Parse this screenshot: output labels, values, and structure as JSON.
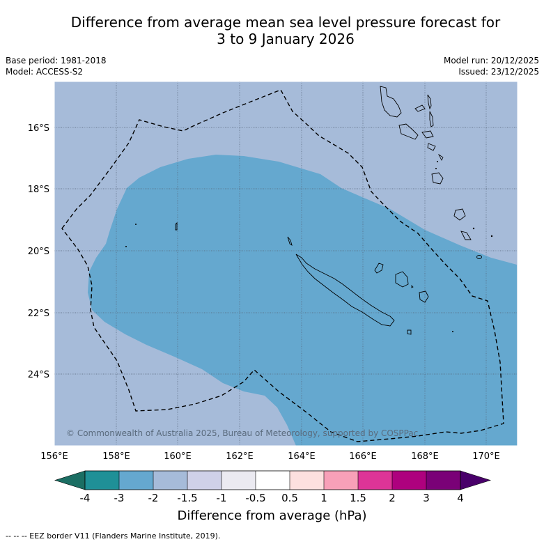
{
  "header": {
    "title_line1": "Difference from average mean sea level pressure forecast for",
    "title_line2": "3 to 9 January 2026"
  },
  "meta": {
    "base_period": "Base period: 1981-2018",
    "model": "Model: ACCESS-S2",
    "model_run": "Model run: 20/12/2025",
    "issued": "Issued: 23/12/2025"
  },
  "map": {
    "lon_labels": [
      "156°E",
      "158°E",
      "160°E",
      "162°E",
      "164°E",
      "166°E",
      "168°E",
      "170°E"
    ],
    "lat_labels": [
      "16°S",
      "18°S",
      "20°S",
      "22°S",
      "24°S"
    ],
    "copyright": "© Commonwealth of Australia 2025, Bureau of Meteorology, supported by COSPPac",
    "colors": {
      "background_anomaly": "#a6bbd9",
      "inner_anomaly": "#65a8cf"
    },
    "regions": [
      {
        "name": "background",
        "range": "-2 to -1.5",
        "color": "#a6bbd9"
      },
      {
        "name": "inner",
        "range": "-3 to -2",
        "color": "#65a8cf"
      }
    ]
  },
  "colorbar": {
    "ticks": [
      "-4",
      "-3",
      "-2",
      "-1.5",
      "-1",
      "-0.5",
      "0.5",
      "1",
      "1.5",
      "2",
      "3",
      "4"
    ],
    "colors": [
      "#1b6e63",
      "#1f9097",
      "#65a8cf",
      "#a6bbd9",
      "#cfd1e8",
      "#ebeaf1",
      "#ffffff",
      "#fde0df",
      "#f8a0b8",
      "#dd3497",
      "#ae017e",
      "#7a0177",
      "#49006a"
    ],
    "label": "Difference from average (hPa)"
  },
  "footnote": "-- -- -- EEZ border V11 (Flanders Marine Institute, 2019)."
}
